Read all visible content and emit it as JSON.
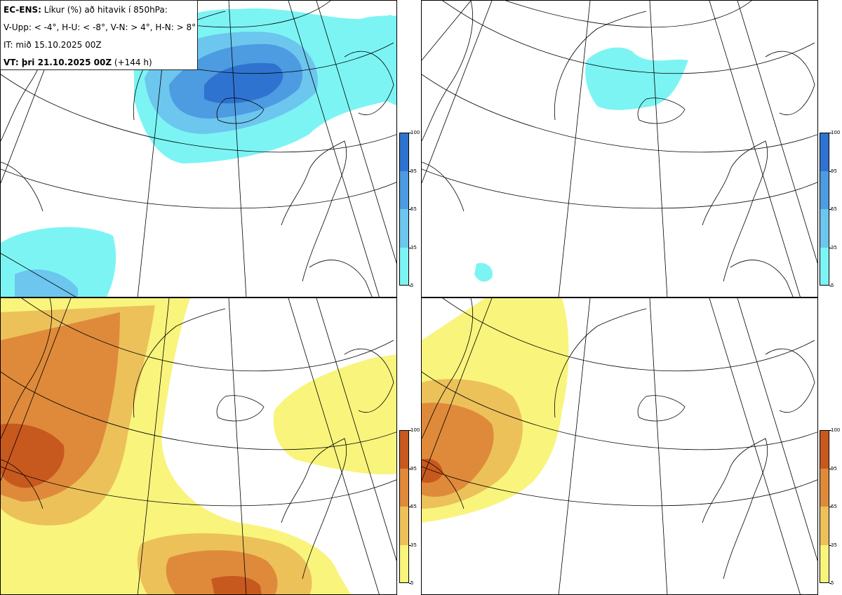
{
  "header": {
    "model": "EC-ENS:",
    "title_rest": "Líkur (%) að hitavik í 850hPa:",
    "thresholds": "V-Upp: < -4°, H-U: < -8°, V-N: > 4°, H-N: > 8°",
    "init_time": "IT: mið 15.10.2025 00Z",
    "valid_label": "VT: þri 21.10.2025 00Z",
    "lead": "(+144 h)"
  },
  "legends": {
    "cold": {
      "ticks": [
        "100",
        "95",
        "65",
        "35",
        "5"
      ],
      "colors": [
        "#2f73d1",
        "#4d9be0",
        "#6cc6ee",
        "#7cf4f4"
      ]
    },
    "warm": {
      "ticks": [
        "100",
        "95",
        "65",
        "35",
        "5"
      ],
      "colors": [
        "#c8591e",
        "#df8a3a",
        "#ecc15a",
        "#f9f47c"
      ]
    }
  },
  "panels": [
    {
      "id": "v-upp",
      "color_scheme": "cold"
    },
    {
      "id": "h-u",
      "color_scheme": "cold"
    },
    {
      "id": "v-n",
      "color_scheme": "warm"
    },
    {
      "id": "h-n",
      "color_scheme": "warm"
    }
  ]
}
